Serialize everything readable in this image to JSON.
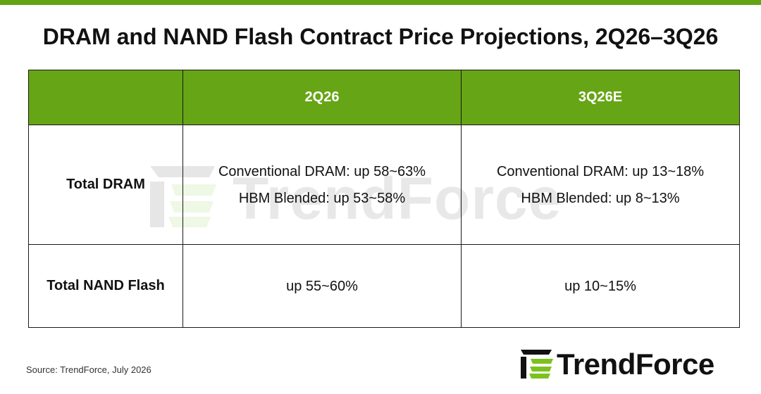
{
  "colors": {
    "accent_green": "#64a313",
    "header_green": "#66a515",
    "logo_green": "#7cc21f",
    "text_dark": "#111111"
  },
  "title": "DRAM and NAND Flash Contract Price Projections, 2Q26–3Q26",
  "table": {
    "headers": [
      "",
      "2Q26",
      "3Q26E"
    ],
    "rows": [
      {
        "label": "Total DRAM",
        "q2": [
          "Conventional DRAM: up 58~63%",
          "HBM Blended: up 53~58%"
        ],
        "q3": [
          "Conventional DRAM: up 13~18%",
          "HBM Blended: up 8~13%"
        ]
      },
      {
        "label": "Total NAND Flash",
        "q2": [
          "up 55~60%"
        ],
        "q3": [
          "up 10~15%"
        ]
      }
    ]
  },
  "source": "Source: TrendForce, July 2026",
  "logo": {
    "text": "TrendForce",
    "icon": "trendforce-logo-icon"
  },
  "watermark": {
    "text": "TrendForce",
    "icon": "trendforce-watermark-icon"
  }
}
